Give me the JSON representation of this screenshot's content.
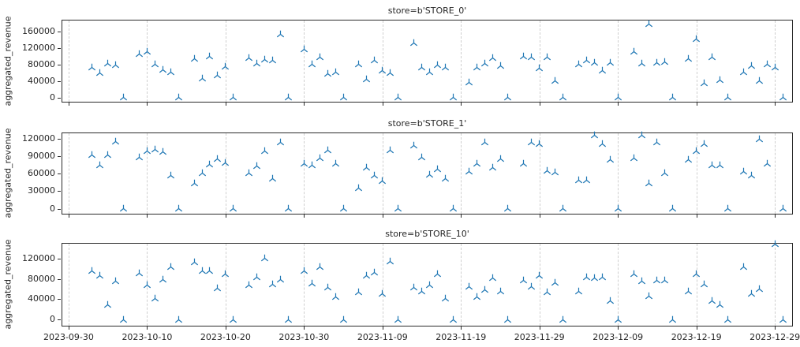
{
  "figure": {
    "background": "#ffffff",
    "marker_color": "#1f77b4",
    "gridline_color": "#cfcfcf",
    "spine_color": "#2b2b2b",
    "marker_glyph": "tri-spoke (stem up, legs down)"
  },
  "chart_data": {
    "type": "scatter",
    "grid": "vertical dashed gridlines at each x tick",
    "legend_position": "none",
    "x_tick_labels": [
      "2023-09-30",
      "2023-10-10",
      "2023-10-20",
      "2023-10-30",
      "2023-11-09",
      "2023-11-19",
      "2023-11-29",
      "2023-12-09",
      "2023-12-19",
      "2023-12-29"
    ],
    "x": [
      "2023-10-03",
      "2023-10-04",
      "2023-10-05",
      "2023-10-06",
      "2023-10-07",
      "2023-10-09",
      "2023-10-10",
      "2023-10-11",
      "2023-10-12",
      "2023-10-13",
      "2023-10-14",
      "2023-10-16",
      "2023-10-17",
      "2023-10-18",
      "2023-10-19",
      "2023-10-20",
      "2023-10-21",
      "2023-10-23",
      "2023-10-24",
      "2023-10-25",
      "2023-10-26",
      "2023-10-27",
      "2023-10-28",
      "2023-10-30",
      "2023-10-31",
      "2023-11-01",
      "2023-11-02",
      "2023-11-03",
      "2023-11-04",
      "2023-11-06",
      "2023-11-07",
      "2023-11-08",
      "2023-11-09",
      "2023-11-10",
      "2023-11-11",
      "2023-11-13",
      "2023-11-14",
      "2023-11-15",
      "2023-11-16",
      "2023-11-17",
      "2023-11-18",
      "2023-11-20",
      "2023-11-21",
      "2023-11-22",
      "2023-11-23",
      "2023-11-24",
      "2023-11-25",
      "2023-11-27",
      "2023-11-28",
      "2023-11-29",
      "2023-11-30",
      "2023-12-01",
      "2023-12-02",
      "2023-12-04",
      "2023-12-05",
      "2023-12-06",
      "2023-12-07",
      "2023-12-08",
      "2023-12-09",
      "2023-12-11",
      "2023-12-12",
      "2023-12-13",
      "2023-12-14",
      "2023-12-15",
      "2023-12-16",
      "2023-12-18",
      "2023-12-19",
      "2023-12-20",
      "2023-12-21",
      "2023-12-22",
      "2023-12-23",
      "2023-12-25",
      "2023-12-26",
      "2023-12-27",
      "2023-12-28",
      "2023-12-29",
      "2023-12-30"
    ],
    "subplots": [
      {
        "title": "store=b'STORE_0'",
        "ylabel": "aggregated_revenue",
        "yticks": [
          0,
          40000,
          80000,
          120000,
          160000
        ],
        "ylim": [
          -12000,
          188000
        ],
        "values": [
          72000,
          60000,
          82000,
          78000,
          0,
          105000,
          111000,
          80000,
          68000,
          62000,
          0,
          94000,
          47000,
          99000,
          54000,
          75000,
          0,
          95000,
          82000,
          92000,
          89000,
          152000,
          0,
          116000,
          80000,
          97000,
          58000,
          62000,
          0,
          81000,
          45000,
          90000,
          66000,
          60000,
          0,
          132000,
          73000,
          62000,
          78000,
          72000,
          0,
          37000,
          72000,
          82000,
          95000,
          76000,
          0,
          100000,
          97000,
          70000,
          97000,
          40000,
          0,
          81000,
          89000,
          85000,
          66000,
          85000,
          0,
          110000,
          82000,
          178000,
          85000,
          87000,
          0,
          94000,
          142000,
          34000,
          97000,
          43000,
          0,
          62000,
          76000,
          40000,
          80000,
          72000,
          0
        ]
      },
      {
        "title": "store=b'STORE_1'",
        "ylabel": "aggregated_revenue",
        "yticks": [
          0,
          30000,
          60000,
          90000,
          120000
        ],
        "ylim": [
          -10000,
          131000
        ],
        "values": [
          93000,
          75000,
          93000,
          115000,
          0,
          88000,
          99000,
          102000,
          98000,
          57000,
          0,
          43000,
          61000,
          76000,
          85000,
          79000,
          0,
          61000,
          73000,
          99000,
          52000,
          114000,
          0,
          78000,
          75000,
          87000,
          101000,
          78000,
          0,
          35000,
          70000,
          57000,
          47000,
          100000,
          0,
          109000,
          88000,
          59000,
          68000,
          52000,
          0,
          64000,
          77000,
          114000,
          70000,
          85000,
          0,
          78000,
          114000,
          112000,
          65000,
          63000,
          0,
          49000,
          49000,
          126000,
          111000,
          84000,
          0,
          87000,
          126000,
          44000,
          114000,
          61000,
          0,
          84000,
          99000,
          111000,
          75000,
          75000,
          0,
          64000,
          57000,
          120000,
          78000,
          null,
          0
        ]
      },
      {
        "title": "store=b'STORE_10'",
        "ylabel": "aggregated_revenue",
        "yticks": [
          0,
          40000,
          80000,
          120000
        ],
        "ylim": [
          -14000,
          151000
        ],
        "values": [
          95000,
          87000,
          29000,
          75000,
          0,
          91000,
          67000,
          42000,
          79000,
          104000,
          0,
          113000,
          96000,
          96000,
          61000,
          89000,
          0,
          68000,
          84000,
          120000,
          69000,
          79000,
          0,
          96000,
          71000,
          103000,
          63000,
          44000,
          0,
          53000,
          87000,
          92000,
          51000,
          115000,
          0,
          63000,
          56000,
          68000,
          89000,
          41000,
          0,
          65000,
          44000,
          59000,
          82000,
          55000,
          0,
          77000,
          65000,
          87000,
          53000,
          72000,
          0,
          55000,
          84000,
          81000,
          84000,
          36000,
          0,
          89000,
          75000,
          46000,
          77000,
          77000,
          0,
          56000,
          89000,
          70000,
          36000,
          29000,
          0,
          104000,
          51000,
          60000,
          null,
          148000,
          0
        ]
      }
    ]
  }
}
